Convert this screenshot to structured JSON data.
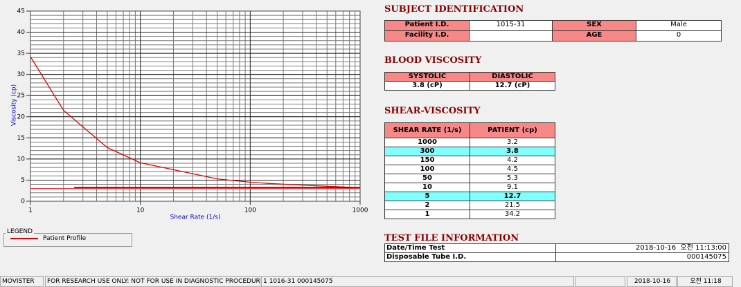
{
  "chart_data": {
    "type": "line",
    "xlabel": "Shear Rate (1/s)",
    "ylabel": "Viscosity (cp)",
    "log_x": true,
    "grid": true,
    "xlim": [
      1,
      1000
    ],
    "xticks": [
      1,
      10,
      100,
      1000
    ],
    "ylim": [
      0,
      45
    ],
    "yticks": [
      0,
      5,
      10,
      15,
      20,
      25,
      30,
      35,
      40,
      45
    ],
    "series": [
      {
        "name": "Patient Profile",
        "color": "#e00000",
        "x": [
          1,
          2,
          5,
          10,
          50,
          100,
          150,
          300,
          1000
        ],
        "values": [
          34.2,
          21.5,
          12.7,
          9.1,
          5.3,
          4.5,
          4.2,
          3.8,
          3.2
        ]
      },
      {
        "color": "#a00000",
        "x": [
          2.5,
          1000
        ],
        "values": [
          3.2,
          3.2
        ]
      },
      {
        "color": "#ff3030",
        "x": [
          1,
          1000
        ],
        "values": [
          3,
          3
        ]
      }
    ]
  },
  "legend": {
    "title": "LEGEND"
  },
  "subject_identification": {
    "title": "SUBJECT IDENTIFICATION",
    "fields": [
      {
        "label": "Patient I.D.",
        "value": "1015-31"
      },
      {
        "label": "SEX",
        "value": "Male"
      },
      {
        "label": "Facility I.D."
      },
      {
        "label": "AGE",
        "value": "0"
      }
    ]
  },
  "blood_viscosity": {
    "title": "BLOOD VISCOSITY",
    "columns": [
      "SYSTOLIC",
      "DIASTOLIC"
    ],
    "values": [
      "3.8 (cP)",
      "12.7 (cP)"
    ]
  },
  "shear_viscosity": {
    "title": "SHEAR-VISCOSITY",
    "columns": [
      "SHEAR RATE (1/s)",
      "PATIENT (cp)"
    ],
    "highlight_color": "#80ffff",
    "rows": [
      {
        "shear_rate": 1000,
        "patient": 3.2
      },
      {
        "shear_rate": 300,
        "patient": 3.8,
        "highlight": true
      },
      {
        "shear_rate": 150,
        "patient": 4.2
      },
      {
        "shear_rate": 100,
        "patient": 4.5
      },
      {
        "shear_rate": 50,
        "patient": 5.3
      },
      {
        "shear_rate": 10,
        "patient": 9.1
      },
      {
        "shear_rate": 5,
        "patient": 12.7,
        "highlight": true
      },
      {
        "shear_rate": 2,
        "patient": 21.5
      },
      {
        "shear_rate": 1,
        "patient": 34.2
      }
    ]
  },
  "test_file_information": {
    "title": "TEST FILE INFORMATION",
    "fields": [
      {
        "label": "Date/Time Test",
        "value": "2018-10-16  오전 11:13:00"
      },
      {
        "label": "Disposable Tube I.D.",
        "value": "000145075"
      }
    ]
  },
  "status_bar": [
    "MOVISTER",
    "FOR RESEARCH USE ONLY: NOT FOR USE IN DIAGNOSTIC PROCEDURES",
    "1  1016-31  000145075",
    "2018-10-16",
    "오전 11:18"
  ]
}
